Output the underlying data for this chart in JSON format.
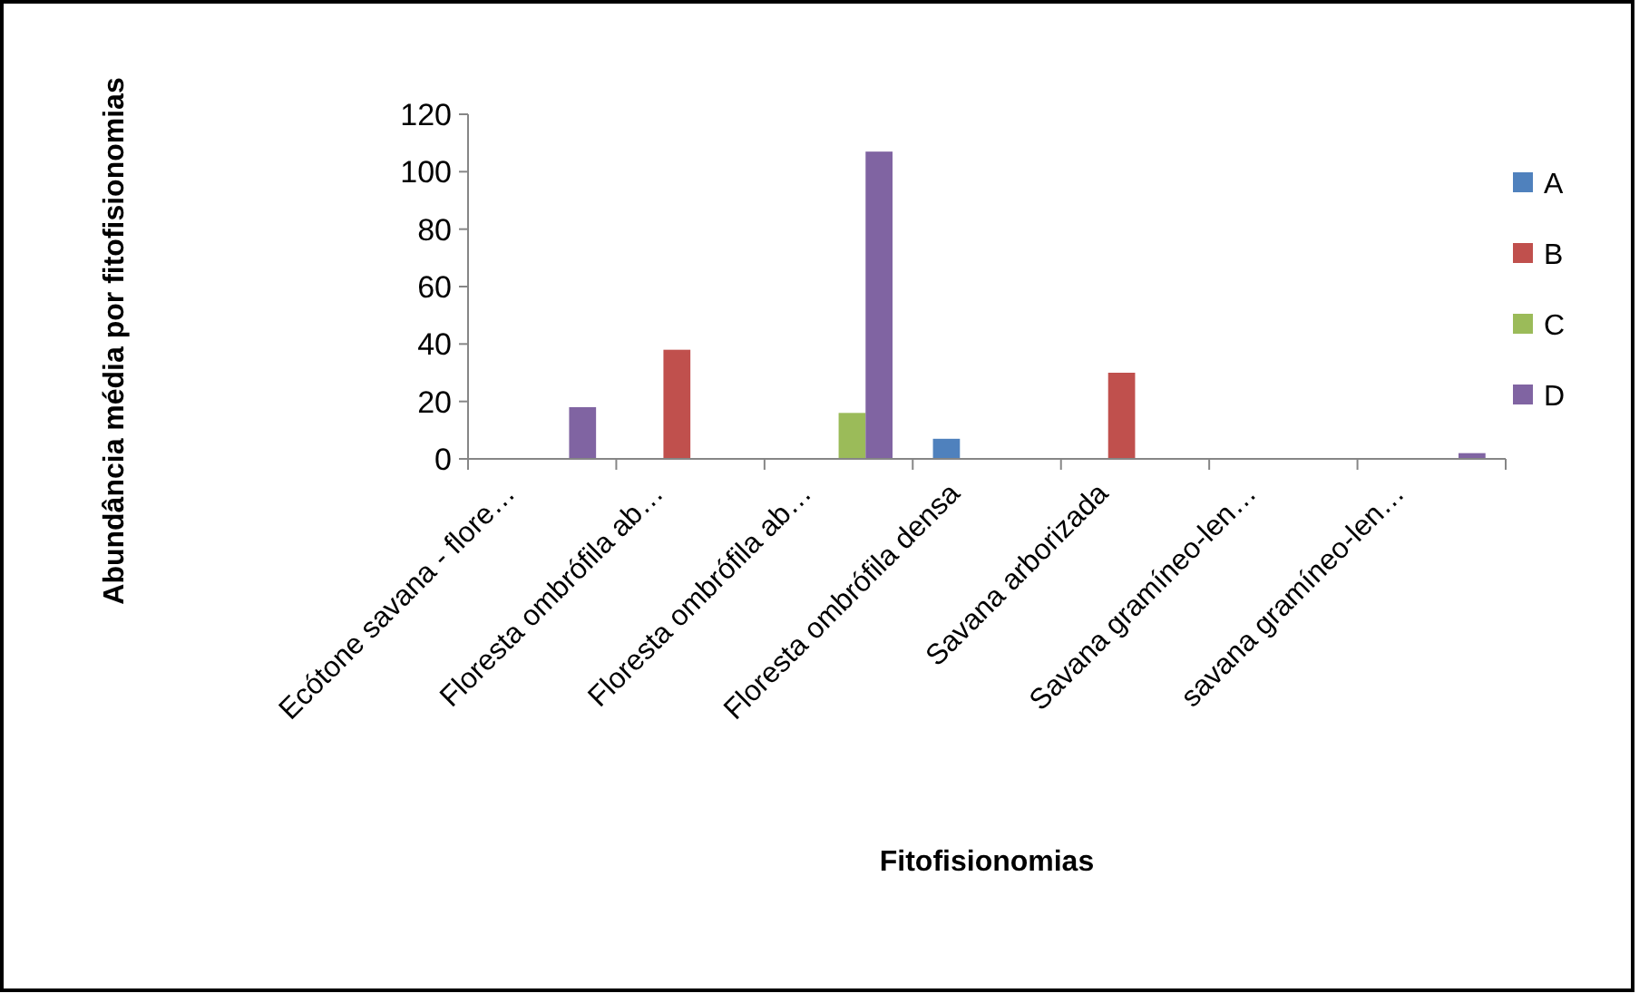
{
  "chart_data": {
    "type": "bar",
    "xlabel": "Fitofisionomias",
    "ylabel": "Abundância média por fitofisionomias",
    "categories": [
      "Ecótone savana - flore…",
      "Floresta ombrófila ab…",
      "Floresta ombrófila ab…",
      "Floresta ombrófila densa",
      "Savana arborizada",
      "Savana gramíneo-len…",
      "savana gramíneo-len…"
    ],
    "series": [
      {
        "name": "A",
        "color": "#4f81bd",
        "values": [
          null,
          null,
          null,
          7,
          null,
          null,
          null
        ]
      },
      {
        "name": "B",
        "color": "#c0504d",
        "values": [
          null,
          38,
          null,
          null,
          30,
          null,
          null
        ]
      },
      {
        "name": "C",
        "color": "#9bbb59",
        "values": [
          null,
          null,
          16,
          null,
          null,
          null,
          null
        ]
      },
      {
        "name": "D",
        "color": "#8064a2",
        "values": [
          18,
          null,
          107,
          null,
          null,
          null,
          2
        ]
      }
    ],
    "ylim": [
      0,
      120
    ],
    "yticks": [
      0,
      20,
      40,
      60,
      80,
      100,
      120
    ],
    "grid": false,
    "legend": "right"
  }
}
